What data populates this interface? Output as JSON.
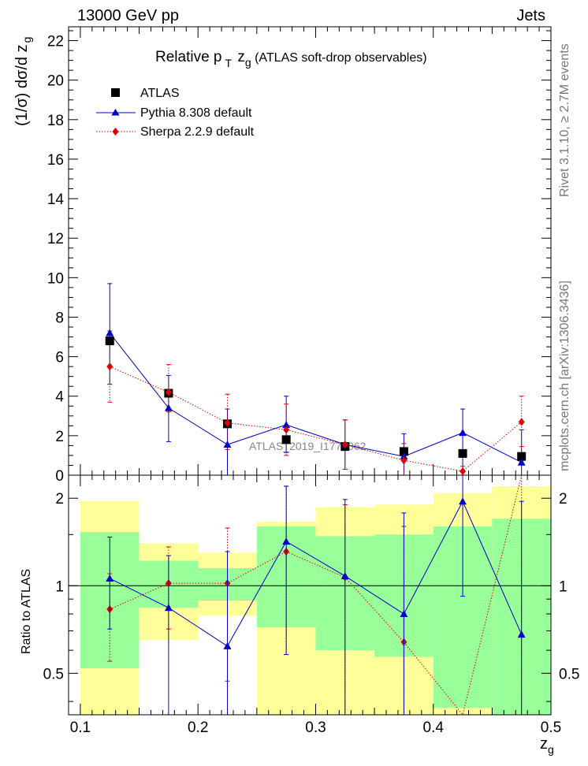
{
  "header": {
    "left": "13000 GeV pp",
    "right": "Jets"
  },
  "side_labels": {
    "rivet": "Rivet 3.1.10, ≥ 2.7M events",
    "mcplots": "mcplots.cern.ch [arXiv:1306.3436]"
  },
  "chart_data": {
    "type": "scatter",
    "title_main": "Relative p",
    "title_sub_T": "T",
    "title_z": " z",
    "title_sub_g": "g",
    "title_tail": " (ATLAS soft-drop observables)",
    "watermark": "ATLAS_2019_I1772062",
    "ylabel": "(1/σ) dσ/d z",
    "ylabel_sub": "g",
    "xlabel": "z",
    "xlabel_sub": "g",
    "ratio_ylabel": "Ratio to ATLAS",
    "xlim": [
      0.09,
      0.5
    ],
    "ylim": [
      0,
      22.7
    ],
    "ratio_ylim": [
      0.36,
      2.4
    ],
    "x_ticks": [
      "0.1",
      "0.2",
      "0.3",
      "0.4",
      "0.5"
    ],
    "y_ticks": [
      "0",
      "2",
      "4",
      "6",
      "8",
      "10",
      "12",
      "14",
      "16",
      "18",
      "20",
      "22"
    ],
    "ratio_ticks": [
      "0.5",
      "1",
      "2"
    ],
    "bins": [
      [
        0.1,
        0.15
      ],
      [
        0.15,
        0.2
      ],
      [
        0.2,
        0.25
      ],
      [
        0.25,
        0.3
      ],
      [
        0.3,
        0.35
      ],
      [
        0.35,
        0.4
      ],
      [
        0.4,
        0.45
      ],
      [
        0.45,
        0.5
      ]
    ],
    "x": [
      0.125,
      0.175,
      0.225,
      0.275,
      0.325,
      0.375,
      0.425,
      0.475
    ],
    "series": [
      {
        "name": "ATLAS",
        "color": "#000000",
        "marker": "square",
        "values": [
          6.8,
          4.15,
          2.6,
          1.8,
          1.45,
          1.2,
          1.1,
          0.95
        ]
      },
      {
        "name": "Pythia 8.308 default",
        "color": "#0000cc",
        "marker": "triangle",
        "line": "solid",
        "values": [
          7.2,
          3.4,
          1.55,
          2.55,
          1.55,
          0.95,
          2.15,
          0.65
        ],
        "err_low": [
          4.6,
          1.7,
          0.0,
          1.15,
          0.3,
          0.0,
          0.0,
          0.0
        ],
        "err_high": [
          9.7,
          5.05,
          3.35,
          4.0,
          2.8,
          2.1,
          3.35,
          2.3
        ],
        "ratio": [
          1.06,
          0.84,
          0.62,
          1.42,
          1.08,
          0.8,
          1.95,
          0.68
        ],
        "ratio_low": [
          0.71,
          0.36,
          0.36,
          0.58,
          0.36,
          0.36,
          0.92,
          0.36
        ],
        "ratio_high": [
          1.47,
          1.27,
          1.31,
          2.2,
          1.98,
          1.78,
          2.4,
          1.95
        ]
      },
      {
        "name": "Sherpa 2.2.9 default",
        "color": "#dd0000",
        "marker": "diamond",
        "line": "dotted",
        "values": [
          5.5,
          4.2,
          2.65,
          2.3,
          1.55,
          0.75,
          0.2,
          2.7
        ],
        "err_low": [
          3.7,
          3.2,
          1.3,
          1.0,
          0.3,
          0.0,
          0.0,
          1.45
        ],
        "err_high": [
          7.3,
          5.6,
          4.1,
          3.6,
          2.8,
          1.6,
          0.45,
          4.0
        ],
        "ratio": [
          0.83,
          1.02,
          1.02,
          1.31,
          1.07,
          0.64,
          0.36,
          2.4
        ],
        "ratio_low": [
          0.55,
          0.71,
          0.47,
          0.58,
          0.36,
          0.36,
          0.36,
          0.36
        ],
        "ratio_high": [
          1.1,
          1.36,
          1.58,
          2.2,
          1.9,
          1.6,
          0.36,
          2.4
        ]
      }
    ],
    "bands": {
      "green_color": "#99ff99",
      "yellow_color": "#ffff99",
      "green_low": [
        0.52,
        0.84,
        0.89,
        0.72,
        0.6,
        0.57,
        0.38,
        0.36
      ],
      "green_high": [
        1.53,
        1.22,
        1.15,
        1.6,
        1.48,
        1.5,
        1.6,
        1.7
      ],
      "yellow_low": [
        0.36,
        0.65,
        0.79,
        0.36,
        0.36,
        0.36,
        0.36,
        0.36
      ],
      "yellow_high": [
        1.96,
        1.4,
        1.3,
        1.66,
        1.86,
        1.9,
        2.08,
        2.2
      ]
    }
  }
}
